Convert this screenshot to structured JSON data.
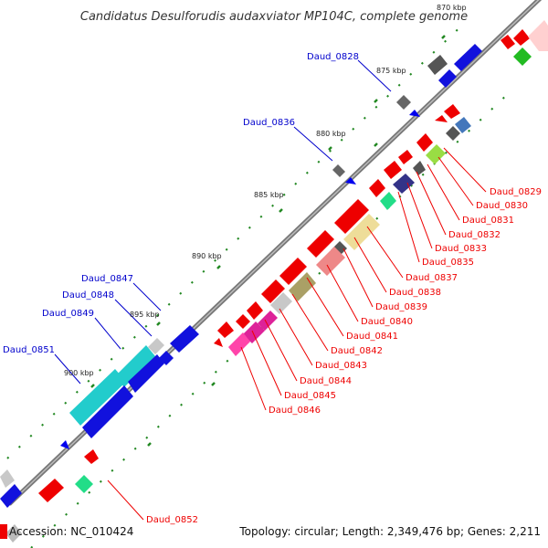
{
  "title": "Candidatus Desulforudis audaxviator MP104C, complete genome",
  "accession": "Accession: NC_010424",
  "summary": "Topology: circular; Length: 2,349,476 bp; Genes: 2,211",
  "kbp_labels": [
    "870 kbp",
    "875 kbp",
    "880 kbp",
    "885 kbp",
    "890 kbp",
    "895 kbp",
    "900 kbp"
  ],
  "left_genes": [
    "Daud_0828",
    "Daud_0836",
    "Daud_0847",
    "Daud_0848",
    "Daud_0849",
    "Daud_0851"
  ],
  "right_genes": [
    "Daud_0829",
    "Daud_0830",
    "Daud_0831",
    "Daud_0832",
    "Daud_0833",
    "Daud_0835",
    "Daud_0837",
    "Daud_0838",
    "Daud_0839",
    "Daud_0840",
    "Daud_0841",
    "Daud_0842",
    "Daud_0843",
    "Daud_0844",
    "Daud_0845",
    "Daud_0846",
    "Daud_0852"
  ],
  "colors": {
    "backbone": "#888888",
    "forward_strand": "#0000ee",
    "reverse_strand": "#ee0000",
    "tick": "#228822"
  }
}
